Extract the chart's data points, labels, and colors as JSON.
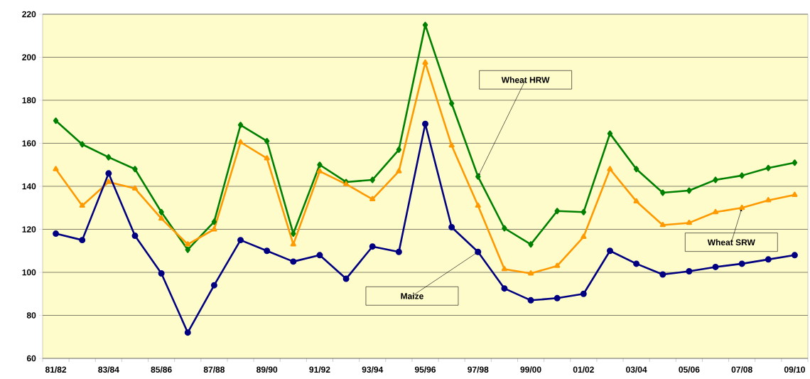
{
  "chart_data": {
    "type": "line",
    "categories": [
      "81/82",
      null,
      "83/84",
      null,
      "85/86",
      null,
      "87/88",
      null,
      "89/90",
      null,
      "91/92",
      null,
      "93/94",
      null,
      "95/96",
      null,
      "97/98",
      null,
      "99/00",
      null,
      "01/02",
      null,
      "03/04",
      null,
      "05/06",
      null,
      "07/08",
      null,
      "09/10"
    ],
    "series": [
      {
        "color": "#008000",
        "marker": "diamond",
        "values": [
          170.5,
          159.5,
          153.5,
          148,
          128,
          110.5,
          123.5,
          168.5,
          161,
          118,
          150,
          142,
          143,
          157,
          215,
          178.5,
          144.5,
          120.5,
          113,
          128.5,
          128,
          164.5,
          148,
          137,
          138,
          143,
          145,
          148.5,
          151
        ]
      },
      {
        "color": "#ff9900",
        "marker": "triangle",
        "values": [
          148,
          131,
          142,
          139,
          125,
          113,
          120,
          160.5,
          153,
          113,
          147,
          141,
          134,
          147,
          197.5,
          159,
          131,
          101.5,
          99.5,
          103,
          116.5,
          148,
          133,
          122,
          123,
          128,
          130,
          133.5,
          136
        ]
      },
      {
        "color": "#000080",
        "marker": "circle",
        "values": [
          118,
          115,
          146,
          117,
          99.5,
          72,
          94,
          115,
          110,
          105,
          108,
          97,
          112,
          109.5,
          169,
          121,
          109.5,
          92.5,
          87,
          88,
          90,
          110,
          104,
          99,
          100.5,
          102.5,
          104,
          106,
          108
        ]
      }
    ],
    "ylim": [
      60,
      220
    ],
    "yticks": [
      60,
      80,
      100,
      120,
      140,
      160,
      180,
      200,
      220
    ],
    "annotations": [
      {
        "text": "Wheat HRW",
        "x": "97/98",
        "y": 144.5
      },
      {
        "text": "Wheat SRW",
        "x": "07/08",
        "y": 130
      },
      {
        "text": "Maize",
        "x": "97/98",
        "y": 109.5
      }
    ],
    "grid": "y",
    "legend": false,
    "line_style": "solid"
  }
}
